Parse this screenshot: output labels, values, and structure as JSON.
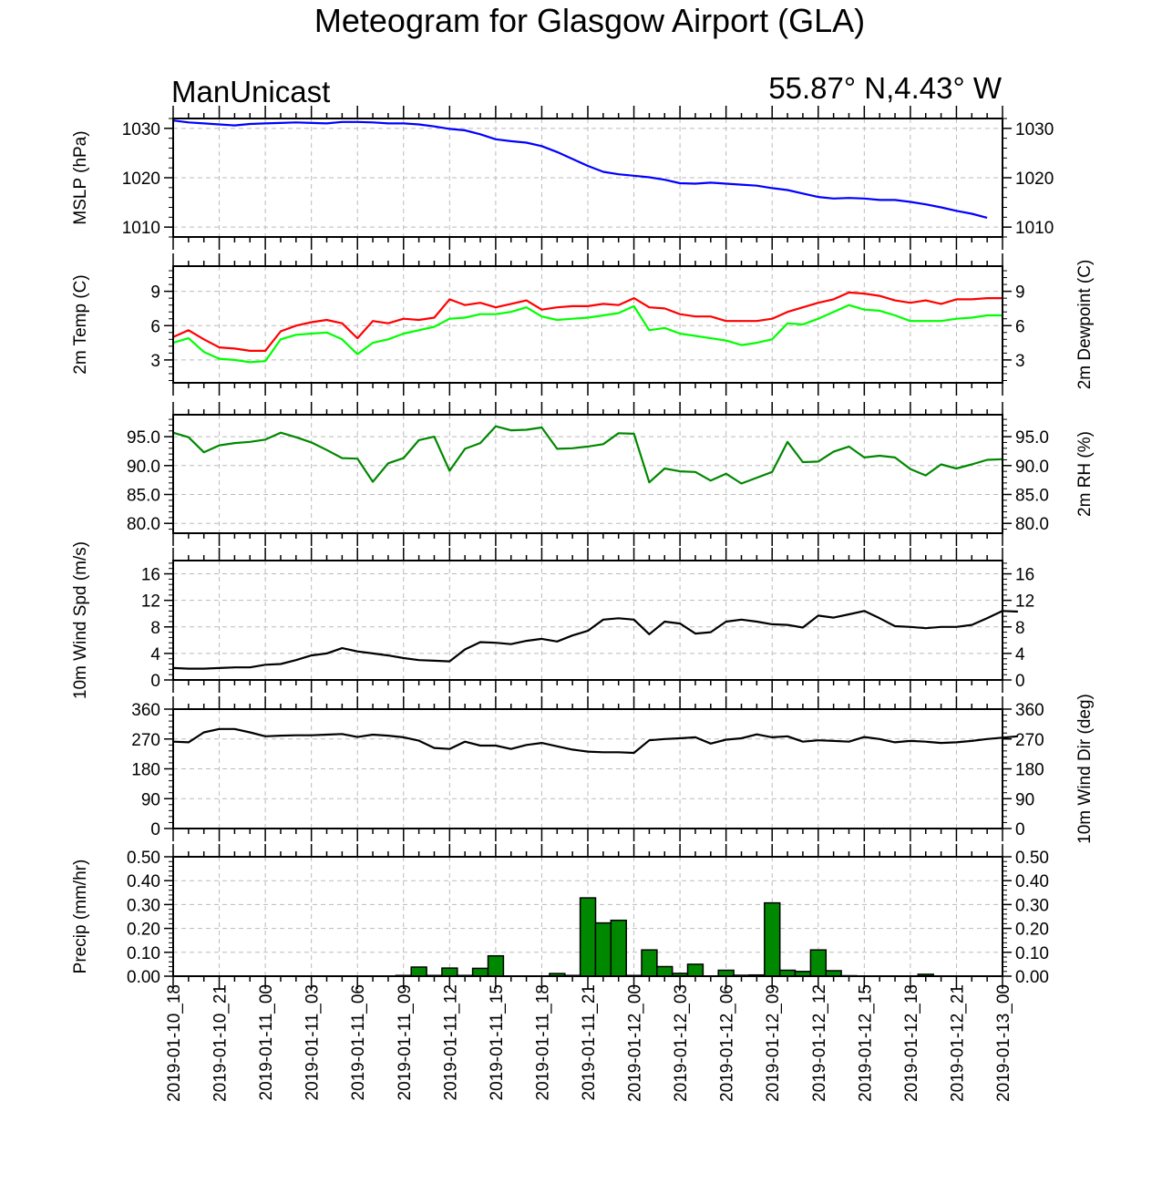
{
  "title": "Meteogram for Glasgow Airport (GLA)",
  "subtitle_left": "ManUnicast",
  "subtitle_right": "55.87° N,4.43° W",
  "x_tick_labels": [
    "2019-01-10_18",
    "2019-01-10_21",
    "2019-01-11_00",
    "2019-01-11_03",
    "2019-01-11_06",
    "2019-01-11_09",
    "2019-01-11_12",
    "2019-01-11_15",
    "2019-01-11_18",
    "2019-01-11_21",
    "2019-01-12_00",
    "2019-01-12_03",
    "2019-01-12_06",
    "2019-01-12_09",
    "2019-01-12_12",
    "2019-01-12_15",
    "2019-01-12_18",
    "2019-01-12_21",
    "2019-01-13_00"
  ],
  "colors": {
    "mslp": "#0000ff",
    "temp": "#ff0000",
    "dewpoint": "#00ff00",
    "rh": "#008800",
    "wind": "#000000",
    "precip": "#008800",
    "grid": "#bbbbbb"
  },
  "chart_data": [
    {
      "id": "mslp",
      "type": "line",
      "ylabel_left": "MSLP (hPa)",
      "ylabel_right": "",
      "ylim": [
        1008,
        1032
      ],
      "yticks": [
        1010,
        1020,
        1030
      ],
      "tick_labels": [
        "1010",
        "1020",
        "1030"
      ],
      "x_hours_start": 0,
      "x_hours_step": 1,
      "series": [
        {
          "color_key": "mslp",
          "values": [
            1031.6,
            1031.2,
            1031.0,
            1030.8,
            1030.6,
            1030.9,
            1031.0,
            1031.1,
            1031.2,
            1031.1,
            1031.0,
            1031.3,
            1031.3,
            1031.2,
            1031.0,
            1031.0,
            1030.8,
            1030.4,
            1029.9,
            1029.6,
            1028.8,
            1027.8,
            1027.4,
            1027.1,
            1026.4,
            1025.2,
            1023.8,
            1022.4,
            1021.2,
            1020.7,
            1020.4,
            1020.1,
            1019.6,
            1018.9,
            1018.8,
            1019.0,
            1018.8,
            1018.6,
            1018.4,
            1017.9,
            1017.5,
            1016.8,
            1016.1,
            1015.8,
            1015.9,
            1015.8,
            1015.5,
            1015.5,
            1015.1,
            1014.6,
            1014.0,
            1013.3,
            1012.7,
            1011.9
          ]
        }
      ]
    },
    {
      "id": "temp",
      "type": "line",
      "ylabel_left": "2m Temp (C)",
      "ylabel_right": "2m Dewpoint (C)",
      "ylim": [
        1.0,
        11.2
      ],
      "yticks": [
        3,
        6,
        9
      ],
      "tick_labels": [
        "3",
        "6",
        "9"
      ],
      "x_hours_start": 0,
      "x_hours_step": 1,
      "series": [
        {
          "color_key": "temp",
          "values": [
            5.0,
            5.6,
            4.8,
            4.1,
            4.0,
            3.8,
            3.8,
            5.5,
            6.0,
            6.3,
            6.5,
            6.2,
            4.9,
            6.4,
            6.2,
            6.6,
            6.5,
            6.7,
            8.3,
            7.8,
            8.0,
            7.6,
            7.9,
            8.2,
            7.4,
            7.6,
            7.7,
            7.7,
            7.9,
            7.8,
            8.4,
            7.6,
            7.5,
            7.0,
            6.8,
            6.8,
            6.4,
            6.4,
            6.4,
            6.6,
            7.2,
            7.6,
            8.0,
            8.3,
            8.9,
            8.8,
            8.6,
            8.2,
            8.0,
            8.2,
            7.9,
            8.3,
            8.3,
            8.4,
            8.4
          ]
        },
        {
          "color_key": "dewpoint",
          "values": [
            4.5,
            4.9,
            3.7,
            3.1,
            3.0,
            2.8,
            2.9,
            4.8,
            5.2,
            5.3,
            5.4,
            4.8,
            3.5,
            4.5,
            4.8,
            5.3,
            5.6,
            5.9,
            6.6,
            6.7,
            7.0,
            7.0,
            7.2,
            7.6,
            6.8,
            6.5,
            6.6,
            6.7,
            6.9,
            7.1,
            7.7,
            5.6,
            5.8,
            5.3,
            5.1,
            4.9,
            4.7,
            4.3,
            4.5,
            4.8,
            6.2,
            6.1,
            6.6,
            7.2,
            7.8,
            7.4,
            7.3,
            6.9,
            6.4,
            6.4,
            6.4,
            6.6,
            6.7,
            6.9,
            6.9
          ]
        }
      ]
    },
    {
      "id": "rh",
      "type": "line",
      "ylabel_left": "",
      "ylabel_right": "2m RH (%)",
      "ylim": [
        78.3,
        98.8
      ],
      "yticks": [
        80,
        85,
        90,
        95
      ],
      "tick_labels": [
        "80.0",
        "85.0",
        "90.0",
        "95.0"
      ],
      "x_hours_start": 0,
      "x_hours_step": 1,
      "series": [
        {
          "color_key": "rh",
          "values": [
            95.7,
            94.9,
            92.3,
            93.5,
            93.9,
            94.1,
            94.5,
            95.7,
            94.9,
            94.0,
            92.7,
            91.3,
            91.2,
            87.2,
            90.4,
            91.3,
            94.4,
            95.0,
            89.1,
            92.9,
            93.9,
            96.8,
            96.1,
            96.2,
            96.6,
            92.9,
            93.0,
            93.3,
            93.7,
            95.6,
            95.5,
            87.1,
            89.5,
            89.0,
            88.9,
            87.4,
            88.6,
            86.9,
            87.9,
            88.9,
            94.1,
            90.6,
            90.7,
            92.4,
            93.3,
            91.4,
            91.7,
            91.4,
            89.4,
            88.3,
            90.2,
            89.5,
            90.2,
            91.0,
            91.1
          ]
        }
      ]
    },
    {
      "id": "wspd",
      "type": "line",
      "ylabel_left": "10m Wind Spd (m/s)",
      "ylabel_right": "",
      "ylim": [
        0,
        18
      ],
      "yticks": [
        0,
        4,
        8,
        12,
        16
      ],
      "tick_labels": [
        "0",
        "4",
        "8",
        "12",
        "16"
      ],
      "x_hours_start": 0,
      "x_hours_step": 1,
      "series": [
        {
          "color_key": "wind",
          "values": [
            1.8,
            1.7,
            1.7,
            1.8,
            1.9,
            1.9,
            2.3,
            2.4,
            3.0,
            3.7,
            4.0,
            4.8,
            4.3,
            4.0,
            3.7,
            3.3,
            3.0,
            2.9,
            2.8,
            4.6,
            5.7,
            5.6,
            5.4,
            5.9,
            6.2,
            5.8,
            6.7,
            7.4,
            9.1,
            9.3,
            9.1,
            6.9,
            8.8,
            8.5,
            7.0,
            7.2,
            8.8,
            9.1,
            8.8,
            8.4,
            8.3,
            7.9,
            9.7,
            9.4,
            9.9,
            10.4,
            9.3,
            8.1,
            8.0,
            7.8,
            8.0,
            8.0,
            8.3,
            9.3,
            10.4,
            10.3
          ]
        }
      ]
    },
    {
      "id": "wdir",
      "type": "line",
      "ylabel_left": "",
      "ylabel_right": "10m Wind Dir (deg)",
      "ylim": [
        0,
        360
      ],
      "yticks": [
        0,
        90,
        180,
        270,
        360
      ],
      "tick_labels": [
        "0",
        "90",
        "180",
        "270",
        "360"
      ],
      "x_hours_start": 0,
      "x_hours_step": 1,
      "series": [
        {
          "color_key": "wind",
          "values": [
            262,
            260,
            290,
            300,
            300,
            290,
            278,
            280,
            281,
            281,
            283,
            285,
            276,
            283,
            280,
            275,
            265,
            243,
            240,
            262,
            250,
            250,
            240,
            252,
            258,
            248,
            238,
            232,
            230,
            230,
            228,
            266,
            270,
            272,
            275,
            256,
            268,
            272,
            284,
            275,
            278,
            262,
            266,
            264,
            262,
            276,
            270,
            260,
            264,
            262,
            258,
            260,
            264,
            270,
            274,
            278
          ]
        }
      ]
    },
    {
      "id": "precip",
      "type": "bar",
      "ylabel_left": "Precip (mm/hr)",
      "ylabel_right": "",
      "ylim": [
        0,
        0.5
      ],
      "yticks": [
        0,
        0.1,
        0.2,
        0.3,
        0.4,
        0.5
      ],
      "tick_labels": [
        "0.00",
        "0.10",
        "0.20",
        "0.30",
        "0.40",
        "0.50"
      ],
      "x_hours_start": 0,
      "x_hours_step": 1,
      "bar_hours": [
        15,
        16,
        17,
        18,
        19,
        20,
        21,
        22,
        23,
        24,
        25,
        26,
        27,
        28,
        29,
        30,
        31,
        32,
        33,
        34,
        35,
        36,
        37,
        38,
        39,
        40,
        41,
        42,
        43,
        44,
        45,
        46,
        47,
        48,
        49,
        50,
        51,
        52,
        53
      ],
      "values": [
        0.003,
        0.038,
        0.003,
        0.034,
        0.003,
        0.033,
        0.085,
        0.0,
        0.0,
        0.0,
        0.011,
        0.003,
        0.328,
        0.223,
        0.234,
        0.003,
        0.11,
        0.04,
        0.012,
        0.05,
        0.0,
        0.025,
        0.004,
        0.005,
        0.307,
        0.025,
        0.02,
        0.11,
        0.023,
        0.002,
        0.0,
        0.0,
        0.0,
        0.0,
        0.008,
        0.0,
        0.0,
        0.0,
        0.0
      ]
    }
  ]
}
